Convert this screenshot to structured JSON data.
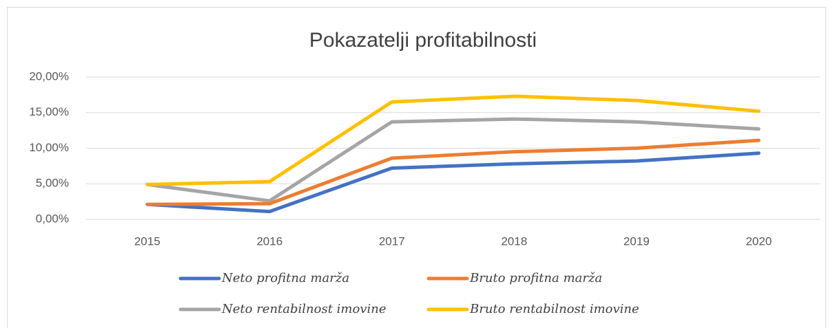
{
  "chart_data": {
    "type": "line",
    "title": "Pokazatelji profitabilnosti",
    "categories": [
      "2015",
      "2016",
      "2017",
      "2018",
      "2019",
      "2020"
    ],
    "series": [
      {
        "name": "Neto profitna marža",
        "color": "#4472c4",
        "values": [
          2.1,
          1.1,
          7.2,
          7.8,
          8.2,
          9.3
        ]
      },
      {
        "name": "Bruto profitna marža",
        "color": "#ed7d31",
        "values": [
          2.1,
          2.2,
          8.6,
          9.5,
          10.0,
          11.1
        ]
      },
      {
        "name": "Neto rentabilnost imovine",
        "color": "#a5a5a5",
        "values": [
          4.9,
          2.6,
          13.7,
          14.1,
          13.7,
          12.7
        ]
      },
      {
        "name": "Bruto rentabilnost imovine",
        "color": "#ffc000",
        "values": [
          4.9,
          5.3,
          16.5,
          17.3,
          16.7,
          15.2
        ]
      }
    ],
    "ylim": [
      0,
      20
    ],
    "yticks": [
      {
        "value": 0,
        "label": "0,00%"
      },
      {
        "value": 5,
        "label": "5,00%"
      },
      {
        "value": 10,
        "label": "10,00%"
      },
      {
        "value": 15,
        "label": "15,00%"
      },
      {
        "value": 20,
        "label": "20,00%"
      }
    ],
    "grid": true,
    "legend": "bottom"
  }
}
